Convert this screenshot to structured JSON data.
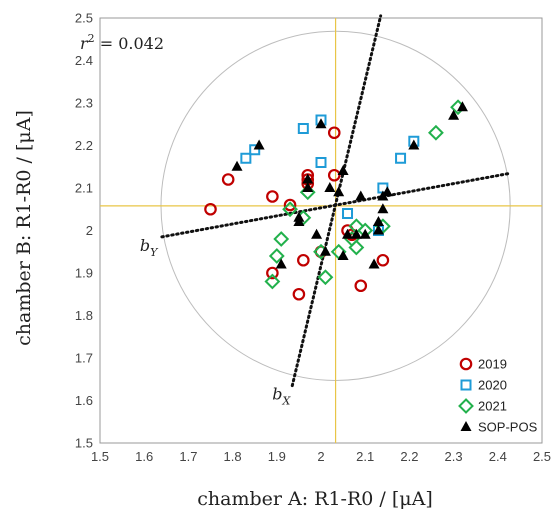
{
  "chart_data": {
    "type": "scatter",
    "xlabel": "chamber A: R1-R0 / [μA]",
    "ylabel": "chamber B: R1-R0 / [μA]",
    "xlim": [
      1.5,
      2.5
    ],
    "ylim": [
      1.5,
      2.5
    ],
    "xticks": [
      "1.5",
      "1.6",
      "1.7",
      "1.8",
      "1.9",
      "2",
      "2.1",
      "2.2",
      "2.3",
      "2.4",
      "2.5"
    ],
    "yticks": [
      "1.5",
      "1.6",
      "1.7",
      "1.8",
      "1.9",
      "2",
      "2.1",
      "2.2",
      "2.3",
      "2.4",
      "2.5"
    ],
    "grid": false,
    "legend_position": "bottom-right",
    "annotation": {
      "prefix": "r",
      "sup": "2",
      "suffix": " = 0.042"
    },
    "reference_lines": {
      "vertical_x": 2.033,
      "horizontal_y": 2.058,
      "color": "#e8c547"
    },
    "circle": {
      "center": [
        2.033,
        2.058
      ],
      "radius": 0.395
    },
    "regression_lines": [
      {
        "label_main": "b",
        "label_sub": "X",
        "points": [
          [
            1.935,
            1.635
          ],
          [
            2.135,
            2.505
          ]
        ]
      },
      {
        "label_main": "b",
        "label_sub": "Y",
        "points": [
          [
            1.64,
            1.985
          ],
          [
            2.43,
            2.135
          ]
        ]
      }
    ],
    "series": [
      {
        "name": "2019",
        "marker": "circle",
        "color": "#c00000",
        "points": [
          [
            1.75,
            2.05
          ],
          [
            1.79,
            2.12
          ],
          [
            1.89,
            2.08
          ],
          [
            1.89,
            1.9
          ],
          [
            1.93,
            2.06
          ],
          [
            1.95,
            1.85
          ],
          [
            1.96,
            1.93
          ],
          [
            1.97,
            2.13
          ],
          [
            1.97,
            2.12
          ],
          [
            1.97,
            2.11
          ],
          [
            2.0,
            1.95
          ],
          [
            2.03,
            2.23
          ],
          [
            2.03,
            2.13
          ],
          [
            2.06,
            2.0
          ],
          [
            2.07,
            1.99
          ],
          [
            2.09,
            1.87
          ],
          [
            2.14,
            1.93
          ]
        ]
      },
      {
        "name": "2020",
        "marker": "square",
        "color": "#1e9bd7",
        "points": [
          [
            1.83,
            2.17
          ],
          [
            1.85,
            2.19
          ],
          [
            1.96,
            2.24
          ],
          [
            2.0,
            2.16
          ],
          [
            2.0,
            2.26
          ],
          [
            2.06,
            2.04
          ],
          [
            2.13,
            2.0
          ],
          [
            2.14,
            2.1
          ],
          [
            2.18,
            2.17
          ],
          [
            2.21,
            2.21
          ]
        ]
      },
      {
        "name": "2021",
        "marker": "diamond",
        "color": "#22b14c",
        "points": [
          [
            1.89,
            1.88
          ],
          [
            1.9,
            1.94
          ],
          [
            1.91,
            1.98
          ],
          [
            1.93,
            2.05
          ],
          [
            1.96,
            2.03
          ],
          [
            1.97,
            2.09
          ],
          [
            2.0,
            1.95
          ],
          [
            2.01,
            1.89
          ],
          [
            2.04,
            1.95
          ],
          [
            2.07,
            1.98
          ],
          [
            2.08,
            1.96
          ],
          [
            2.08,
            2.01
          ],
          [
            2.1,
            2.0
          ],
          [
            2.14,
            2.01
          ],
          [
            2.26,
            2.23
          ],
          [
            2.31,
            2.29
          ]
        ]
      },
      {
        "name": "SOP-POS",
        "marker": "triangle",
        "color": "#000000",
        "points": [
          [
            1.81,
            2.15
          ],
          [
            1.86,
            2.2
          ],
          [
            1.91,
            1.92
          ],
          [
            1.95,
            2.02
          ],
          [
            1.95,
            2.03
          ],
          [
            1.97,
            2.1
          ],
          [
            1.97,
            2.12
          ],
          [
            1.99,
            1.99
          ],
          [
            2.0,
            2.25
          ],
          [
            2.01,
            1.95
          ],
          [
            2.02,
            2.1
          ],
          [
            2.04,
            2.09
          ],
          [
            2.05,
            2.14
          ],
          [
            2.05,
            1.94
          ],
          [
            2.06,
            1.99
          ],
          [
            2.08,
            1.99
          ],
          [
            2.09,
            2.08
          ],
          [
            2.1,
            1.99
          ],
          [
            2.12,
            1.92
          ],
          [
            2.13,
            2.0
          ],
          [
            2.13,
            2.02
          ],
          [
            2.14,
            2.05
          ],
          [
            2.14,
            2.08
          ],
          [
            2.15,
            2.09
          ],
          [
            2.21,
            2.2
          ],
          [
            2.3,
            2.27
          ],
          [
            2.32,
            2.29
          ]
        ]
      }
    ]
  }
}
